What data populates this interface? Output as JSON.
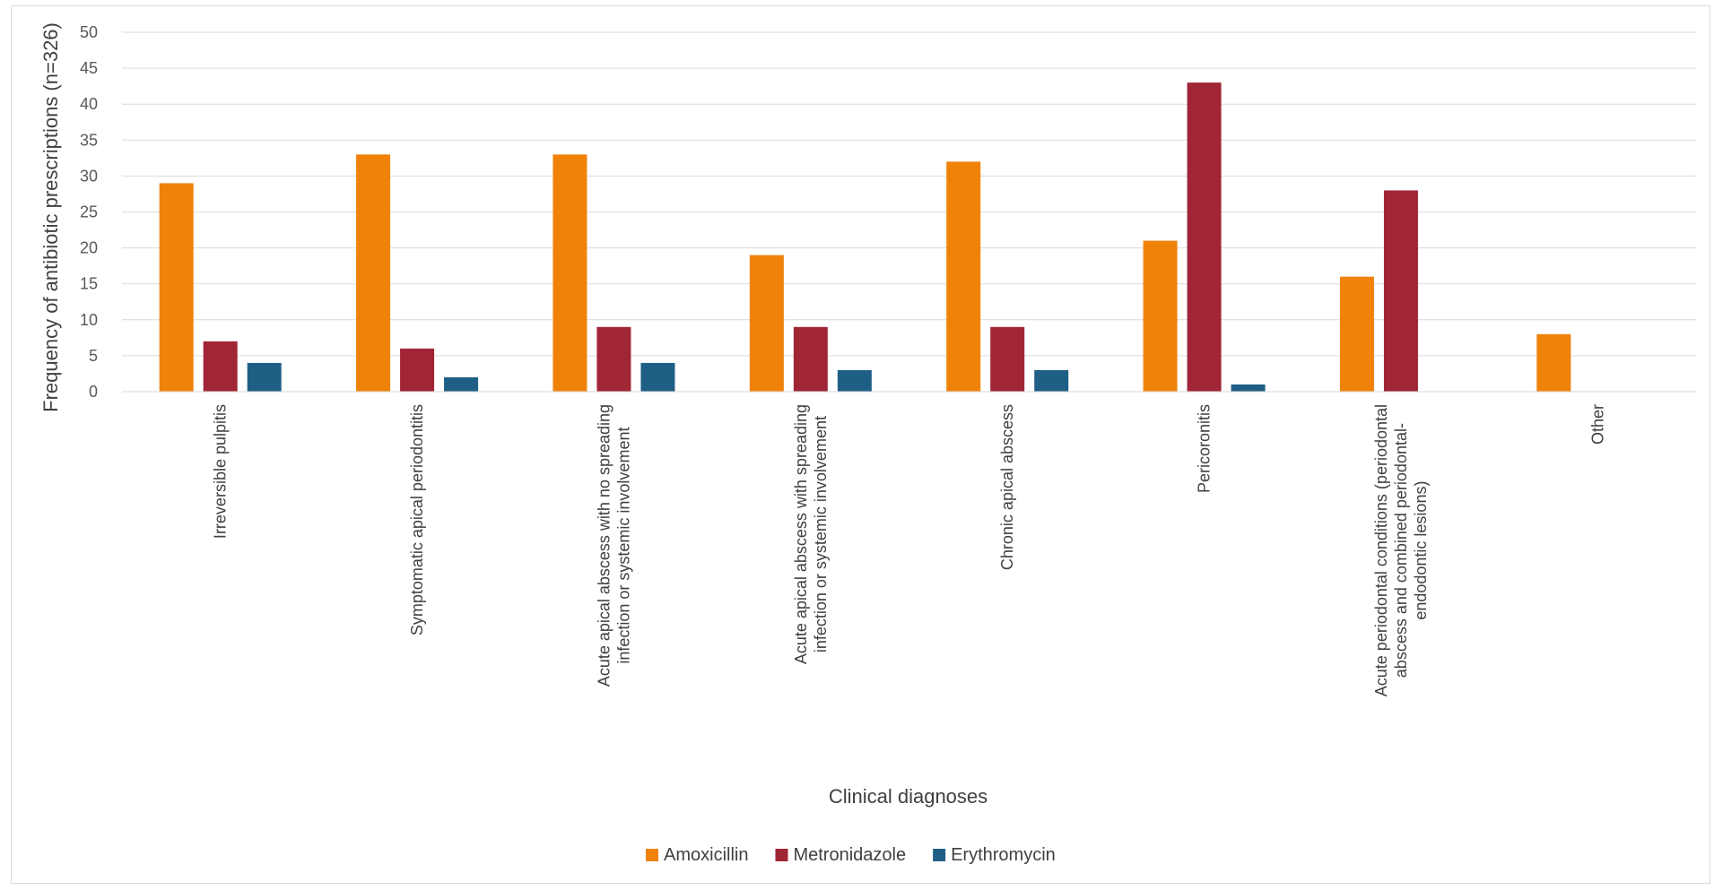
{
  "chart_data": {
    "type": "bar",
    "ylabel": "Frequency of antibiotic prescriptions (n=326)",
    "xlabel": "Clinical diagnoses",
    "ylim": [
      0,
      50
    ],
    "ytick_step": 5,
    "grid": true,
    "legend_position": "bottom",
    "categories": [
      [
        "Irreversible pulpitis"
      ],
      [
        "Symptomatic apical periodontitis"
      ],
      [
        "Acute apical abscess with no spreading",
        "infection or systemic involvement"
      ],
      [
        "Acute apical abscess with spreading",
        "infection or systemic involvement"
      ],
      [
        "Chronic apical abscess"
      ],
      [
        "Pericoronitis"
      ],
      [
        "Acute periodontal conditions (periodontal",
        "abscess and combined periodontal-",
        "endodontic lesions)"
      ],
      [
        "Other"
      ]
    ],
    "series": [
      {
        "name": "Amoxicillin",
        "color": "#F0820A",
        "values": [
          29,
          33,
          33,
          19,
          32,
          21,
          16,
          8
        ]
      },
      {
        "name": "Metronidazole",
        "color": "#A02535",
        "values": [
          7,
          6,
          9,
          9,
          9,
          43,
          28,
          0
        ]
      },
      {
        "name": "Erythromycin",
        "color": "#1F5F86",
        "values": [
          4,
          2,
          4,
          3,
          3,
          1,
          0,
          0
        ]
      }
    ]
  }
}
